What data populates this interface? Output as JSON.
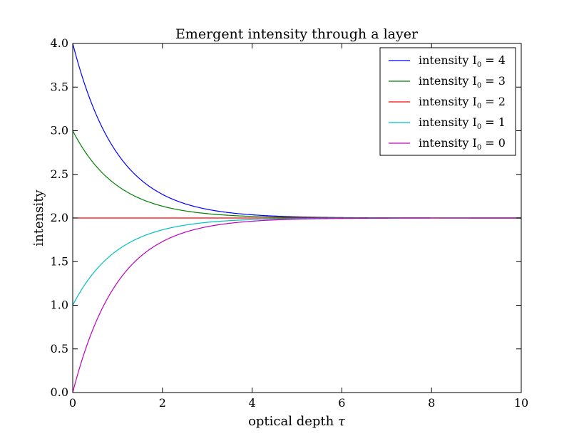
{
  "chart_data": {
    "type": "line",
    "title": "Emergent intensity through a layer",
    "xlabel": "optical depth",
    "xlabel_symbol": "τ",
    "ylabel": "intensity",
    "xlim": [
      0,
      10
    ],
    "ylim": [
      0,
      4
    ],
    "xticks": [
      "0",
      "2",
      "4",
      "6",
      "8",
      "10"
    ],
    "yticks": [
      "0.0",
      "0.5",
      "1.0",
      "1.5",
      "2.0",
      "2.5",
      "3.0",
      "3.5",
      "4.0"
    ],
    "grid": false,
    "legend_position": "top-right",
    "series": [
      {
        "name": "intensity I",
        "sub": "0",
        "suffix": " = 4",
        "I0": 4,
        "S": 2,
        "color": "#0000ff",
        "x": [
          0,
          0.5,
          1,
          1.5,
          2,
          3,
          4,
          5,
          6,
          8,
          10
        ],
        "y": [
          4.0,
          3.21,
          2.74,
          2.45,
          2.27,
          2.1,
          2.04,
          2.01,
          2.0,
          2.0,
          2.0
        ]
      },
      {
        "name": "intensity I",
        "sub": "0",
        "suffix": " = 3",
        "I0": 3,
        "S": 2,
        "color": "#008000",
        "x": [
          0,
          0.5,
          1,
          1.5,
          2,
          3,
          4,
          5,
          6,
          8,
          10
        ],
        "y": [
          3.0,
          2.61,
          2.37,
          2.22,
          2.14,
          2.05,
          2.02,
          2.01,
          2.0,
          2.0,
          2.0
        ]
      },
      {
        "name": "intensity I",
        "sub": "0",
        "suffix": " = 2",
        "I0": 2,
        "S": 2,
        "color": "#ff0000",
        "x": [
          0,
          10
        ],
        "y": [
          2.0,
          2.0
        ]
      },
      {
        "name": "intensity I",
        "sub": "0",
        "suffix": " = 1",
        "I0": 1,
        "S": 2,
        "color": "#00bfbf",
        "x": [
          0,
          0.5,
          1,
          1.5,
          2,
          3,
          4,
          5,
          6,
          8,
          10
        ],
        "y": [
          1.0,
          1.39,
          1.63,
          1.78,
          1.86,
          1.95,
          1.98,
          1.99,
          2.0,
          2.0,
          2.0
        ]
      },
      {
        "name": "intensity I",
        "sub": "0",
        "suffix": " = 0",
        "I0": 0,
        "S": 2,
        "color": "#bf00bf",
        "x": [
          0,
          0.5,
          1,
          1.5,
          2,
          3,
          4,
          5,
          6,
          8,
          10
        ],
        "y": [
          0.0,
          0.79,
          1.26,
          1.55,
          1.73,
          1.9,
          1.96,
          1.99,
          2.0,
          2.0,
          2.0
        ]
      }
    ]
  }
}
